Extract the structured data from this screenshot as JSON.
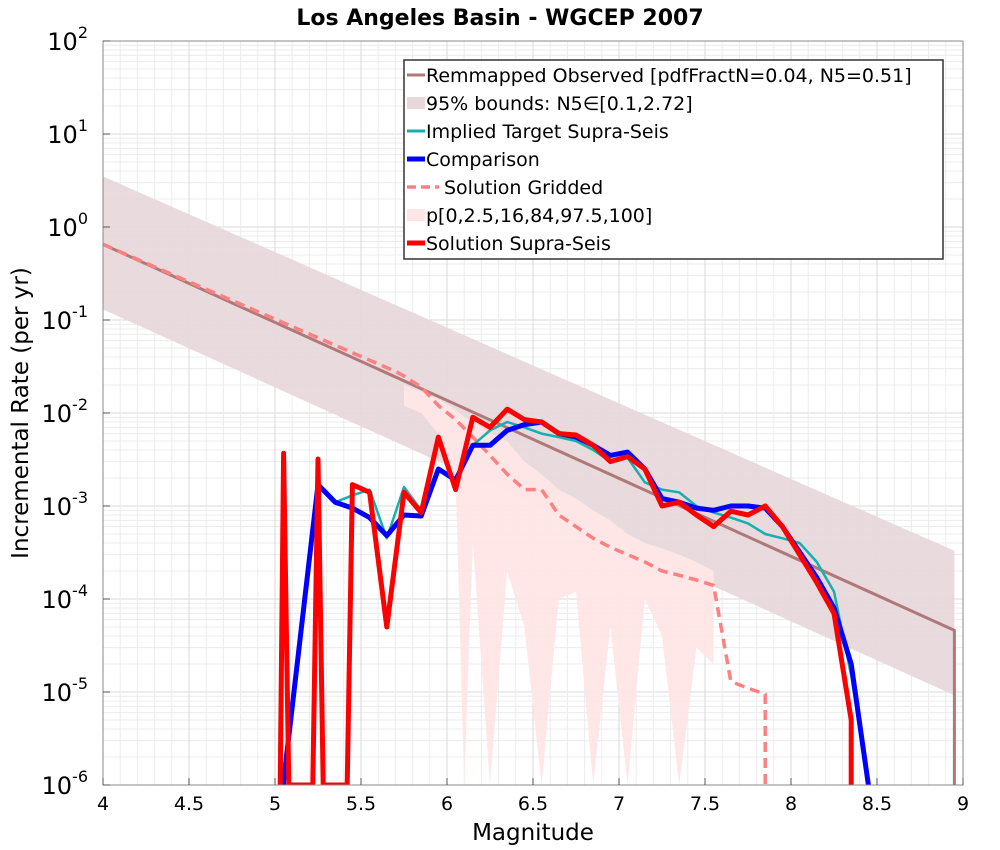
{
  "chart_data": {
    "type": "line",
    "title": "Los Angeles Basin - WGCEP 2007",
    "xlabel": "Magnitude",
    "ylabel": "Incremental Rate (per yr)",
    "xlim": [
      4,
      9
    ],
    "ylim": [
      1e-06,
      100
    ],
    "yscale": "log",
    "grid": true,
    "legend_position": "top-right",
    "x_ticks": [
      4,
      4.5,
      5,
      5.5,
      6,
      6.5,
      7,
      7.5,
      8,
      8.5,
      9
    ],
    "x_tick_labels": [
      "4",
      "4.5",
      "5",
      "5.5",
      "6",
      "6.5",
      "7",
      "7.5",
      "8",
      "8.5",
      "9"
    ],
    "y_ticks": [
      {
        "value": 100,
        "base": "10",
        "exp": "2"
      },
      {
        "value": 10,
        "base": "10",
        "exp": "1"
      },
      {
        "value": 1,
        "base": "10",
        "exp": "0"
      },
      {
        "value": 0.1,
        "base": "10",
        "exp": "-1"
      },
      {
        "value": 0.01,
        "base": "10",
        "exp": "-2"
      },
      {
        "value": 0.001,
        "base": "10",
        "exp": "-3"
      },
      {
        "value": 0.0001,
        "base": "10",
        "exp": "-4"
      },
      {
        "value": 1e-05,
        "base": "10",
        "exp": "-5"
      },
      {
        "value": 1e-06,
        "base": "10",
        "exp": "-6"
      }
    ],
    "legend": [
      {
        "label": "Remmapped Observed [pdfFractN=0.04, N5=0.51]",
        "color": "#b07878",
        "style": "line"
      },
      {
        "label": "95% bounds: N5∈[0.1,2.72]",
        "color": "#e8d8db",
        "style": "patch"
      },
      {
        "label": "Implied Target Supra-Seis",
        "color": "#14b0b0",
        "style": "line"
      },
      {
        "label": "Comparison",
        "color": "#0000ff",
        "style": "thick"
      },
      {
        "label": "Solution Gridded",
        "color": "#ff8080",
        "style": "dashed"
      },
      {
        "label": "p[0,2.5,16,84,97.5,100]",
        "color": "#ffe6e6",
        "style": "patch"
      },
      {
        "label": "Solution Supra-Seis",
        "color": "#ff0000",
        "style": "thick"
      }
    ],
    "series": [
      {
        "name": "Remmapped Observed [pdfFractN=0.04, N5=0.51]",
        "color": "#b07878",
        "x": [
          4.0,
          8.95,
          8.95
        ],
        "y": [
          0.65,
          4.6e-05,
          1e-06
        ]
      },
      {
        "name": "95% bounds: N5∈[0.1,2.72]",
        "color": "#e8d8db",
        "x": [
          4.0,
          8.95
        ],
        "y_low": [
          0.13,
          9.2e-06
        ],
        "y_high": [
          3.5,
          0.00033
        ]
      },
      {
        "name": "p[0,2.5,16,84,97.5,100]",
        "color": "#ffe6e6",
        "x": [
          5.75,
          5.85,
          5.95,
          6.05,
          6.1,
          6.15,
          6.25,
          6.35,
          6.45,
          6.55,
          6.65,
          6.75,
          6.85,
          6.95,
          7.05,
          7.15,
          7.25,
          7.35,
          7.45,
          7.55
        ],
        "y_low": [
          0.012,
          0.01,
          0.006,
          0.002,
          1e-06,
          0.0004,
          1e-06,
          0.0002,
          5e-05,
          1e-06,
          0.0001,
          0.00012,
          1e-06,
          5e-05,
          1e-06,
          0.0001,
          4e-05,
          1e-06,
          3e-05,
          2e-05
        ],
        "y_high": [
          0.02,
          0.017,
          0.014,
          0.011,
          0.009,
          0.008,
          0.006,
          0.005,
          0.003,
          0.0022,
          0.0015,
          0.0012,
          0.0009,
          0.0007,
          0.0005,
          0.0004,
          0.00035,
          0.0003,
          0.00025,
          0.0002
        ]
      },
      {
        "name": "Solution Gridded",
        "color": "#ff8080",
        "x": [
          4.0,
          5.7,
          5.75,
          5.85,
          5.95,
          6.05,
          6.15,
          6.25,
          6.35,
          6.45,
          6.55,
          6.65,
          6.75,
          6.85,
          6.95,
          7.05,
          7.15,
          7.25,
          7.35,
          7.45,
          7.55,
          7.65,
          7.75,
          7.85,
          7.85
        ],
        "y": [
          0.65,
          0.028,
          0.025,
          0.019,
          0.012,
          0.0085,
          0.0055,
          0.0035,
          0.0022,
          0.0015,
          0.0015,
          0.0008,
          0.0006,
          0.00045,
          0.00036,
          0.0003,
          0.00025,
          0.0002,
          0.00018,
          0.00016,
          0.00014,
          1.3e-05,
          1.1e-05,
          9.5e-06,
          1e-06
        ]
      },
      {
        "name": "Implied Target Supra-Seis",
        "color": "#14b0b0",
        "x": [
          5.25,
          5.35,
          5.45,
          5.55,
          5.65,
          5.75,
          5.85,
          5.95,
          6.05,
          6.15,
          6.25,
          6.35,
          6.45,
          6.55,
          6.65,
          6.75,
          6.85,
          6.95,
          7.05,
          7.15,
          7.25,
          7.35,
          7.45,
          7.55,
          7.65,
          7.75,
          7.85,
          7.95,
          8.05,
          8.15,
          8.25,
          8.35,
          8.45
        ],
        "y": [
          0.0017,
          0.0011,
          0.0013,
          0.0015,
          0.00045,
          0.0016,
          0.0009,
          0.0025,
          0.0019,
          0.0045,
          0.0065,
          0.008,
          0.007,
          0.006,
          0.0055,
          0.005,
          0.004,
          0.003,
          0.0033,
          0.0018,
          0.0015,
          0.0014,
          0.001,
          0.00085,
          0.00075,
          0.00065,
          0.0005,
          0.00045,
          0.0004,
          0.00025,
          0.00012,
          1.5e-05,
          1e-06
        ]
      },
      {
        "name": "Comparison",
        "color": "#0000ff",
        "x": [
          5.05,
          5.05,
          5.25,
          5.35,
          5.45,
          5.55,
          5.65,
          5.75,
          5.85,
          5.95,
          6.05,
          6.15,
          6.25,
          6.35,
          6.45,
          6.55,
          6.65,
          6.75,
          6.85,
          6.95,
          7.05,
          7.15,
          7.25,
          7.35,
          7.45,
          7.55,
          7.65,
          7.75,
          7.85,
          7.95,
          8.05,
          8.15,
          8.25,
          8.35,
          8.45
        ],
        "y": [
          1e-06,
          1.1e-06,
          0.0017,
          0.0011,
          0.00095,
          0.00075,
          0.00048,
          0.0008,
          0.00078,
          0.0025,
          0.0019,
          0.0045,
          0.0045,
          0.0065,
          0.0075,
          0.008,
          0.006,
          0.0055,
          0.0045,
          0.0035,
          0.0038,
          0.0025,
          0.0012,
          0.0011,
          0.00095,
          0.0009,
          0.001,
          0.001,
          0.00095,
          0.0006,
          0.00032,
          0.00017,
          8e-05,
          2e-05,
          1e-06
        ]
      },
      {
        "name": "Solution Supra-Seis",
        "color": "#ff0000",
        "x": [
          5.03,
          5.05,
          5.08,
          5.22,
          5.25,
          5.28,
          5.42,
          5.45,
          5.55,
          5.65,
          5.75,
          5.85,
          5.95,
          6.05,
          6.15,
          6.25,
          6.35,
          6.45,
          6.55,
          6.65,
          6.75,
          6.85,
          6.95,
          7.05,
          7.15,
          7.25,
          7.35,
          7.45,
          7.55,
          7.65,
          7.75,
          7.85,
          7.95,
          8.05,
          8.15,
          8.25,
          8.35,
          8.35
        ],
        "y": [
          1e-06,
          0.0037,
          1e-06,
          1e-06,
          0.0032,
          1e-06,
          1e-06,
          0.0017,
          0.0014,
          5e-05,
          0.0014,
          0.00085,
          0.0055,
          0.0015,
          0.009,
          0.007,
          0.011,
          0.0085,
          0.008,
          0.006,
          0.0058,
          0.0045,
          0.003,
          0.0034,
          0.0025,
          0.001,
          0.0011,
          0.0008,
          0.0006,
          0.00088,
          0.0008,
          0.001,
          0.0006,
          0.0003,
          0.00015,
          7e-05,
          5e-06,
          1e-06
        ]
      }
    ]
  }
}
